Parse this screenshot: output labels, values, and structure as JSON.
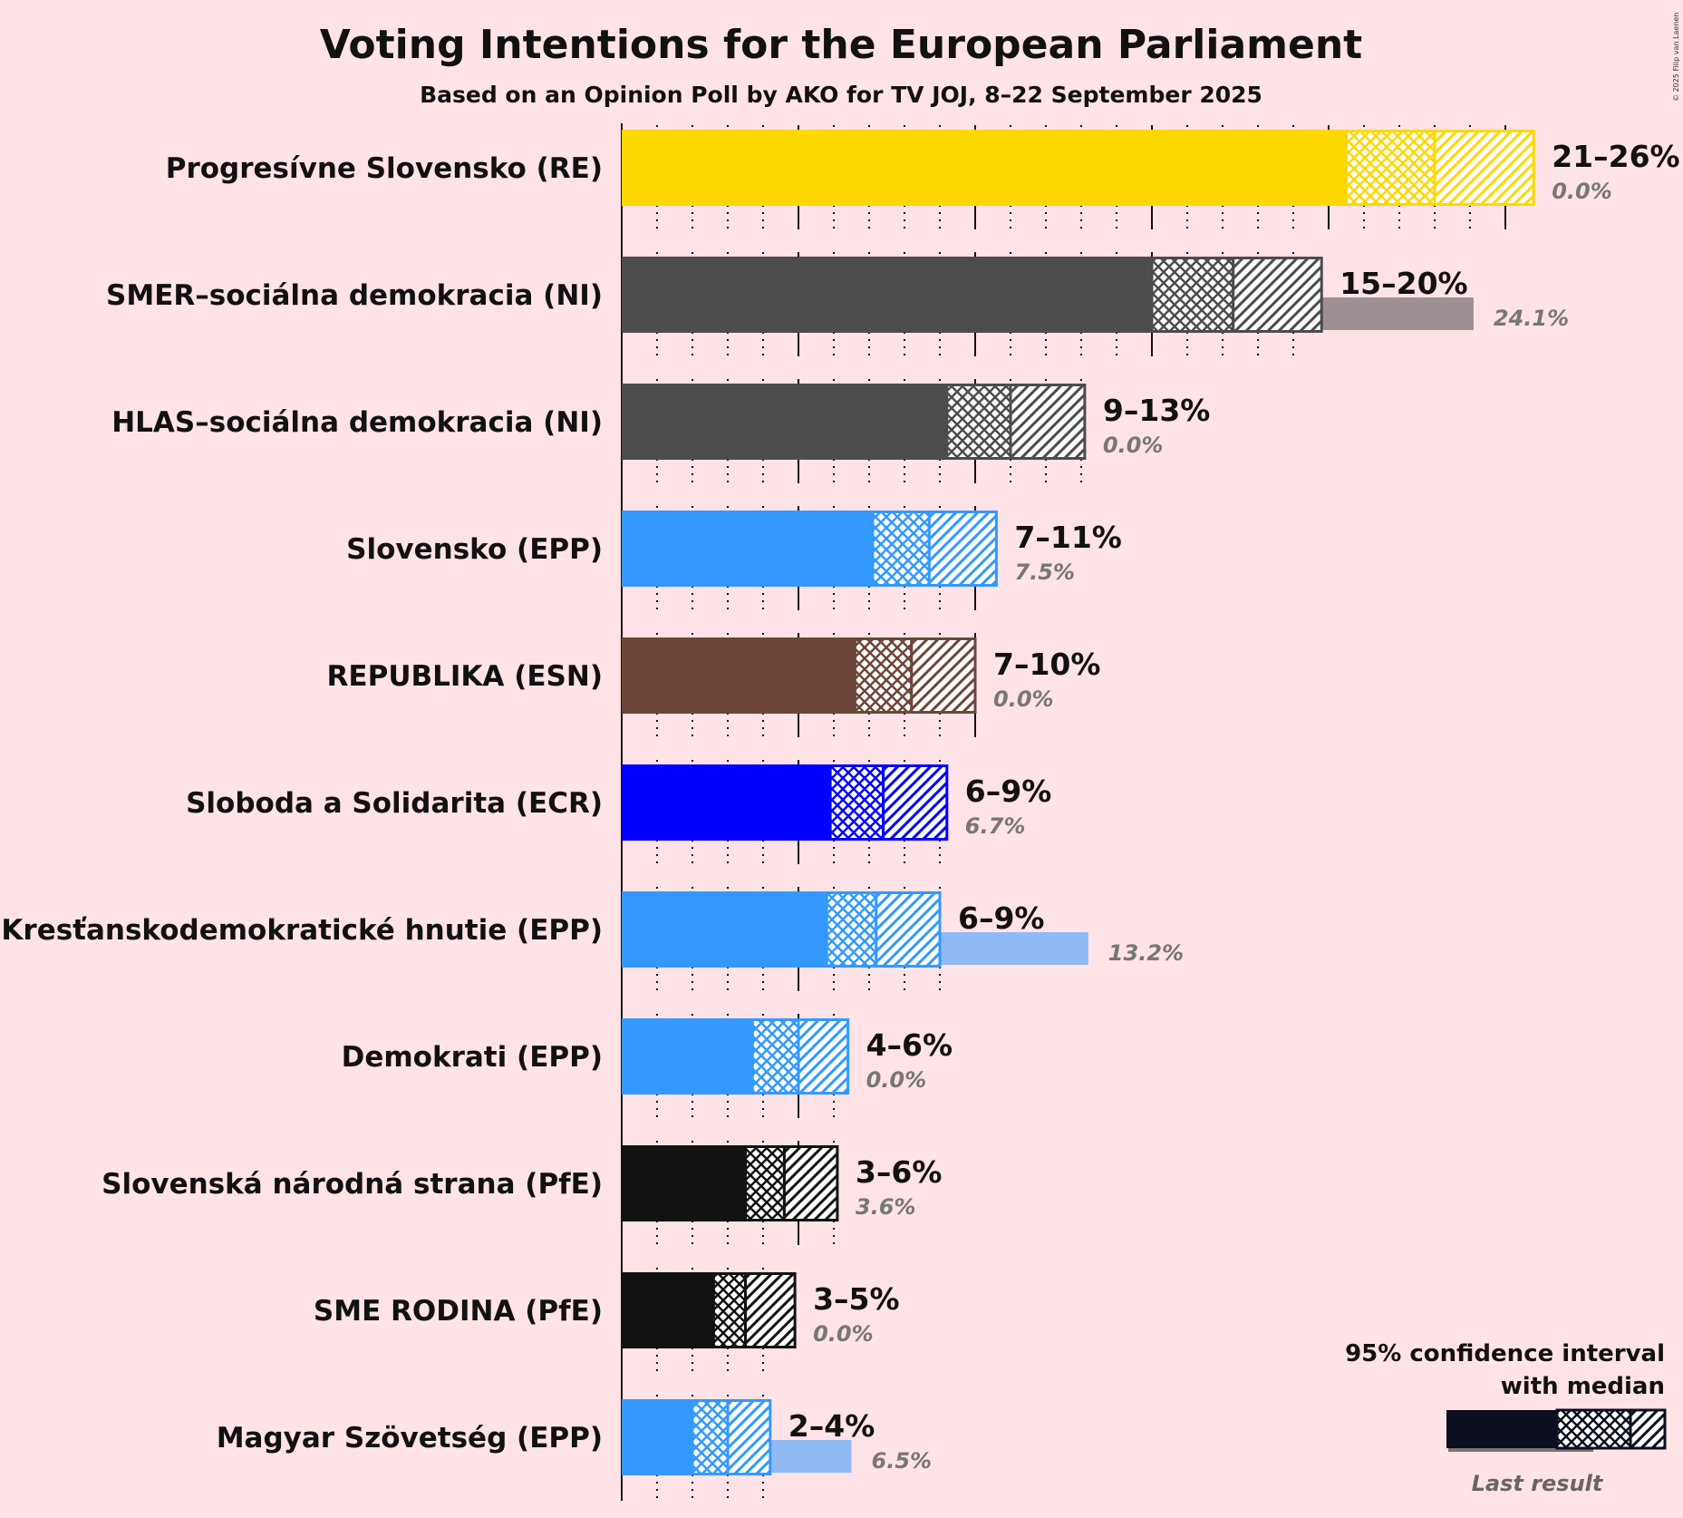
{
  "title": "Voting Intentions for the European Parliament",
  "subtitle": "Based on an Opinion Poll by AKO for TV JOJ, 8–22 September 2025",
  "copyright": "© 2025 Filip van Laenen",
  "legend": {
    "line1": "95% confidence interval",
    "line2": "with median",
    "last_result": "Last result"
  },
  "chart_data": {
    "type": "bar",
    "orientation": "horizontal",
    "unit": "%",
    "xlim": [
      0,
      26
    ],
    "gridlines_major": [
      0,
      5,
      10,
      15,
      20,
      25
    ],
    "gridlines_minor": [
      1,
      2,
      3,
      4,
      6,
      7,
      8,
      9,
      11,
      12,
      13,
      14,
      16,
      17,
      18,
      19,
      21,
      22,
      23,
      24,
      26
    ],
    "series": [
      {
        "party": "Progresívne Slovensko (RE)",
        "color": "#FFD700",
        "ci_low": 20.5,
        "median": 23.0,
        "ci_high": 25.8,
        "range_label": "21–26%",
        "last_result": 0.0,
        "last_label": "0.0%"
      },
      {
        "party": "SMER–sociálna demokracia (NI)",
        "color": "#4C4C4C",
        "ci_low": 15.0,
        "median": 17.3,
        "ci_high": 19.8,
        "range_label": "15–20%",
        "last_result": 24.1,
        "last_label": "24.1%"
      },
      {
        "party": "HLAS–sociálna demokracia (NI)",
        "color": "#4C4C4C",
        "ci_low": 9.2,
        "median": 11.0,
        "ci_high": 13.1,
        "range_label": "9–13%",
        "last_result": 0.0,
        "last_label": "0.0%"
      },
      {
        "party": "Slovensko (EPP)",
        "color": "#3399FF",
        "ci_low": 7.1,
        "median": 8.7,
        "ci_high": 10.6,
        "range_label": "7–11%",
        "last_result": 7.5,
        "last_label": "7.5%"
      },
      {
        "party": "REPUBLIKA (ESN)",
        "color": "#6E453A",
        "ci_low": 6.6,
        "median": 8.2,
        "ci_high": 10.0,
        "range_label": "7–10%",
        "last_result": 0.0,
        "last_label": "0.0%"
      },
      {
        "party": "Sloboda a Solidarita (ECR)",
        "color": "#0000FF",
        "ci_low": 5.9,
        "median": 7.4,
        "ci_high": 9.2,
        "range_label": "6–9%",
        "last_result": 6.7,
        "last_label": "6.7%"
      },
      {
        "party": "Kresťanskodemokratické hnutie (EPP)",
        "color": "#3399FF",
        "ci_low": 5.8,
        "median": 7.2,
        "ci_high": 9.0,
        "range_label": "6–9%",
        "last_result": 13.2,
        "last_label": "13.2%"
      },
      {
        "party": "Demokrati (EPP)",
        "color": "#3399FF",
        "ci_low": 3.7,
        "median": 5.0,
        "ci_high": 6.4,
        "range_label": "4–6%",
        "last_result": 0.0,
        "last_label": "0.0%"
      },
      {
        "party": "Slovenská národná strana (PfE)",
        "color": "#121212",
        "ci_low": 3.5,
        "median": 4.6,
        "ci_high": 6.1,
        "range_label": "3–6%",
        "last_result": 3.6,
        "last_label": "3.6%"
      },
      {
        "party": "SME RODINA (PfE)",
        "color": "#121212",
        "ci_low": 2.6,
        "median": 3.5,
        "ci_high": 4.9,
        "range_label": "3–5%",
        "last_result": 0.0,
        "last_label": "0.0%"
      },
      {
        "party": "Magyar Szövetség (EPP)",
        "color": "#3399FF",
        "ci_low": 2.0,
        "median": 3.0,
        "ci_high": 4.2,
        "range_label": "2–4%",
        "last_result": 6.5,
        "last_label": "6.5%"
      }
    ]
  }
}
